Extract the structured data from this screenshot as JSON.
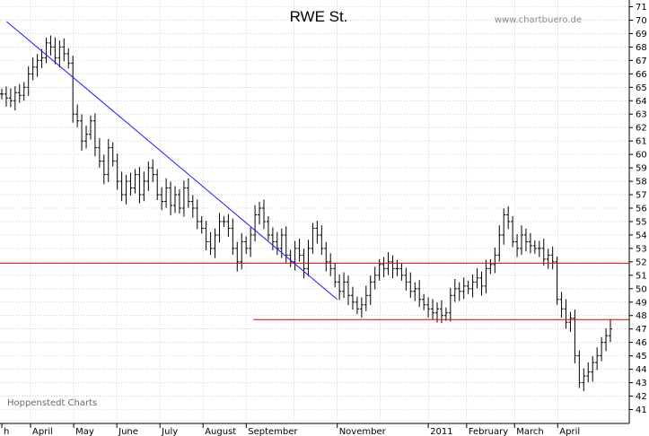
{
  "chart_data": {
    "type": "ohlc",
    "title": "RWE St.",
    "watermark": "www.chartbuero.de",
    "credit": "Hoppenstedt Charts",
    "ylim": [
      40,
      71
    ],
    "yticks": [
      41,
      42,
      43,
      44,
      45,
      46,
      47,
      48,
      49,
      50,
      51,
      52,
      53,
      54,
      55,
      56,
      57,
      58,
      59,
      60,
      61,
      62,
      63,
      64,
      65,
      66,
      67,
      68,
      69,
      70,
      71
    ],
    "grid": true,
    "x_labels": [
      {
        "label": "h",
        "t": 0
      },
      {
        "label": "April",
        "t": 6
      },
      {
        "label": "May",
        "t": 15
      },
      {
        "label": "June",
        "t": 24
      },
      {
        "label": "July",
        "t": 33
      },
      {
        "label": "August",
        "t": 42
      },
      {
        "label": "September",
        "t": 51
      },
      {
        "label": "November",
        "t": 70
      },
      {
        "label": "2011",
        "t": 89
      },
      {
        "label": "February",
        "t": 97
      },
      {
        "label": "March",
        "t": 107
      },
      {
        "label": "April",
        "t": 116
      }
    ],
    "x_gridlines": [
      6,
      15,
      24,
      33,
      42,
      51,
      61,
      70,
      79,
      89,
      97,
      107,
      116
    ],
    "t_range": [
      0,
      127
    ],
    "closes": [
      64.5,
      64.2,
      64.0,
      64.6,
      64.4,
      65.0,
      66.0,
      66.5,
      67.0,
      67.2,
      68.3,
      68.0,
      67.2,
      68.0,
      67.5,
      66.8,
      63.0,
      62.5,
      61.0,
      61.5,
      62.5,
      60.5,
      59.5,
      58.5,
      60.5,
      59.5,
      58.0,
      57.0,
      58.0,
      57.5,
      58.5,
      57.0,
      58.0,
      59.0,
      58.5,
      57.0,
      56.5,
      57.5,
      56.2,
      57.0,
      56.0,
      57.5,
      56.5,
      56.0,
      55.0,
      54.5,
      53.5,
      53.0,
      54.0,
      55.0,
      55.0,
      54.5,
      53.0,
      52.0,
      53.5,
      53.0,
      54.0,
      55.5,
      56.0,
      55.0,
      54.0,
      53.5,
      53.0,
      54.0,
      52.5,
      52.0,
      53.0,
      52.5,
      51.5,
      53.0,
      54.5,
      54.0,
      53.0,
      52.0,
      51.5,
      50.5,
      49.8,
      50.5,
      49.5,
      49.0,
      48.5,
      48.8,
      49.5,
      50.5,
      51.0,
      51.8,
      51.5,
      52.0,
      51.5,
      51.5,
      51.0,
      50.5,
      49.8,
      50.0,
      49.2,
      48.8,
      48.5,
      48.2,
      48.5,
      48.0,
      48.2,
      49.5,
      50.0,
      49.8,
      50.2,
      50.0,
      50.5,
      50.8,
      50.2,
      51.5,
      51.8,
      52.5,
      54.0,
      55.5,
      55.0,
      53.5,
      53.0,
      54.0,
      53.5,
      53.2,
      53.0,
      53.0,
      52.2,
      52.5,
      52.0,
      49.2,
      48.5,
      47.5,
      47.8,
      45.0,
      43.0,
      43.5,
      43.8,
      44.5,
      45.0,
      46.0,
      46.5,
      47.0
    ],
    "horizontal_lines": [
      51.9,
      47.7
    ],
    "trendline": {
      "from": {
        "t": 1,
        "y": 69.9
      },
      "to": {
        "t": 70,
        "y": 49.2
      }
    },
    "support_start_t": 52.5,
    "colors": {
      "trendline": "#1a1aff",
      "horizontal": "#dd0000",
      "bars": "#000000",
      "grid": "#b0b0b0"
    }
  }
}
